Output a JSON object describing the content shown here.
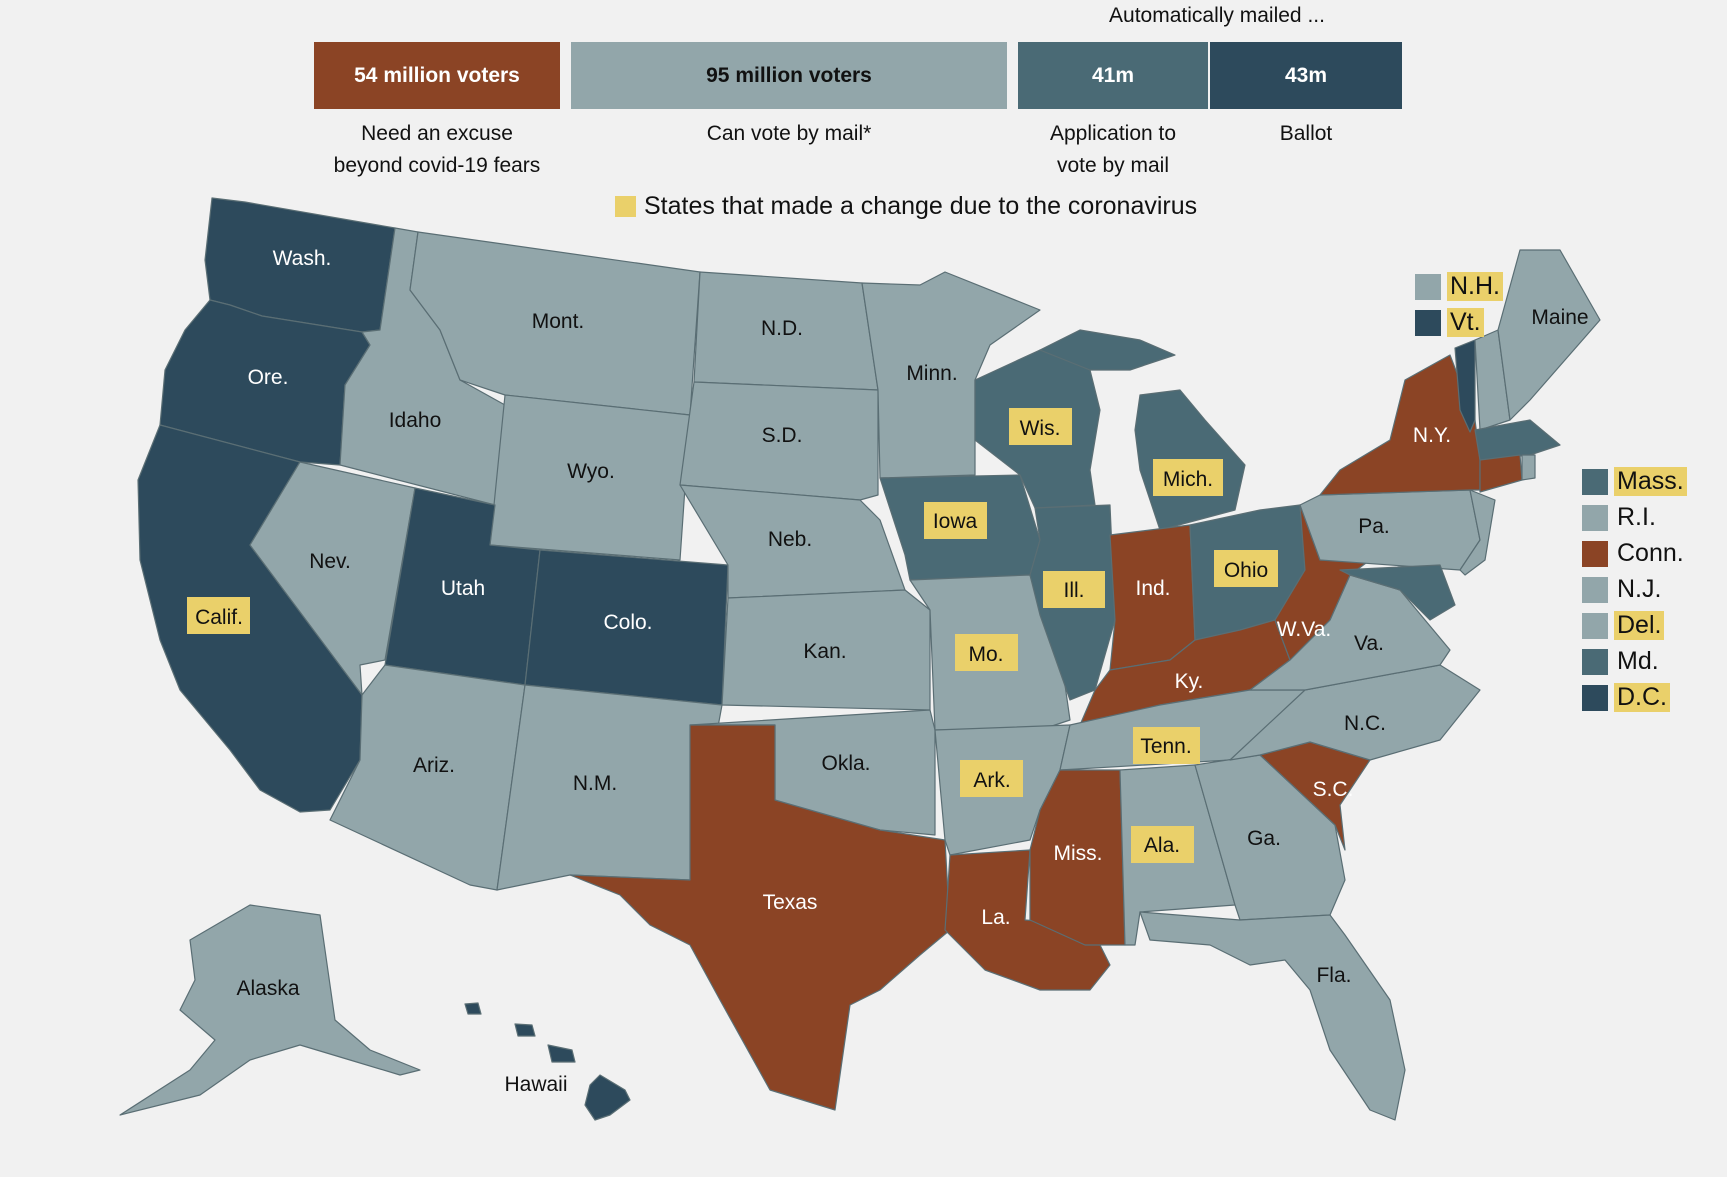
{
  "header": {
    "auto_label": "Automatically mailed ...",
    "bars": [
      {
        "value": "54 million voters",
        "caption_1": "Need an excuse",
        "caption_2": "beyond covid-19 fears",
        "color": "#8b4425"
      },
      {
        "value": "95 million voters",
        "caption_1": "Can vote by mail*",
        "caption_2": "",
        "color": "#92a6aa"
      },
      {
        "value": "41m",
        "caption_1": "Application to",
        "caption_2": "vote by mail",
        "color": "#4a6a75"
      },
      {
        "value": "43m",
        "caption_1": "Ballot",
        "caption_2": "",
        "color": "#2d4a5c"
      }
    ],
    "note": "States that made a change due to the coronavirus"
  },
  "colors": {
    "excuse": "#8b4425",
    "can_mail": "#92a6aa",
    "application": "#4a6a75",
    "ballot": "#2d4a5c",
    "changed": "#ead06a"
  },
  "states": {
    "wash": "Wash.",
    "ore": "Ore.",
    "calif": "Calif.",
    "idaho": "Idaho",
    "nev": "Nev.",
    "mont": "Mont.",
    "wyo": "Wyo.",
    "utah": "Utah",
    "colo": "Colo.",
    "ariz": "Ariz.",
    "nm": "N.M.",
    "nd": "N.D.",
    "sd": "S.D.",
    "neb": "Neb.",
    "kan": "Kan.",
    "okla": "Okla.",
    "texas": "Texas",
    "minn": "Minn.",
    "iowa": "Iowa",
    "mo": "Mo.",
    "ark": "Ark.",
    "la": "La.",
    "wis": "Wis.",
    "ill": "Ill.",
    "mich": "Mich.",
    "ind": "Ind.",
    "ohio": "Ohio",
    "ky": "Ky.",
    "tenn": "Tenn.",
    "miss": "Miss.",
    "ala": "Ala.",
    "ga": "Ga.",
    "fla": "Fla.",
    "sc": "S.C.",
    "nc": "N.C.",
    "va": "Va.",
    "wva": "W.Va.",
    "pa": "Pa.",
    "ny": "N.Y.",
    "maine": "Maine",
    "alaska": "Alaska",
    "hawaii": "Hawaii"
  },
  "legend": [
    {
      "label": "N.H.",
      "color": "#92a6aa",
      "changed": true
    },
    {
      "label": "Vt.",
      "color": "#2d4a5c",
      "changed": true
    },
    {
      "label": "Mass.",
      "color": "#4a6a75",
      "changed": true
    },
    {
      "label": "R.I.",
      "color": "#92a6aa",
      "changed": false
    },
    {
      "label": "Conn.",
      "color": "#8b4425",
      "changed": false
    },
    {
      "label": "N.J.",
      "color": "#92a6aa",
      "changed": false
    },
    {
      "label": "Del.",
      "color": "#92a6aa",
      "changed": true
    },
    {
      "label": "Md.",
      "color": "#4a6a75",
      "changed": false
    },
    {
      "label": "D.C.",
      "color": "#2d4a5c",
      "changed": true
    }
  ]
}
